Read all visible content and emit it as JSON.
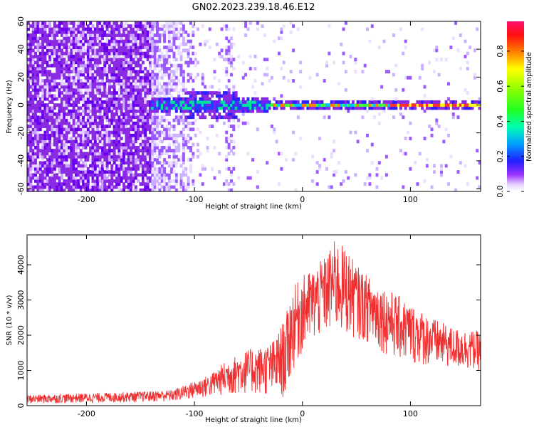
{
  "figure": {
    "title": "GN02.2023.239.18.46.E12"
  },
  "chart_data": [
    {
      "type": "heatmap",
      "xlabel": "Height of straight line (km)",
      "ylabel": "Frequency (Hz)",
      "xlim": [
        -255,
        165
      ],
      "ylim": [
        -62,
        60
      ],
      "xticks": [
        -200,
        -100,
        0,
        100
      ],
      "xtick_labels": [
        "-200",
        "-100",
        "0",
        "100"
      ],
      "yticks": [
        -60,
        -40,
        -20,
        0,
        20,
        40,
        60
      ],
      "ytick_labels": [
        "-60",
        "-40",
        "-20",
        "0",
        "20",
        "40",
        "60"
      ],
      "colorbar": {
        "label": "Normalized spectral amplitude",
        "range": [
          0,
          0.97
        ],
        "ticks": [
          0.0,
          0.2,
          0.4,
          0.6,
          0.8
        ],
        "tick_labels": [
          "0.0",
          "0.2",
          "0.4",
          "0.6",
          "0.8"
        ],
        "colormap": "gist_rainbow_r"
      },
      "grid": false
    },
    {
      "type": "line",
      "xlabel": "Height of straight line (km)",
      "ylabel": "SNR (10 * v/v)",
      "xlim": [
        -255,
        165
      ],
      "ylim": [
        0,
        4850
      ],
      "xticks": [
        -200,
        -100,
        0,
        100
      ],
      "xtick_labels": [
        "-200",
        "-100",
        "0",
        "100"
      ],
      "yticks": [
        0,
        1000,
        2000,
        3000,
        4000
      ],
      "ytick_labels": [
        "0",
        "1000",
        "2000",
        "3000",
        "4000"
      ],
      "color": "#f03030",
      "grid": false,
      "envelope": {
        "x": [
          -255,
          -200,
          -150,
          -120,
          -100,
          -85,
          -70,
          -50,
          -35,
          -25,
          -15,
          -10,
          0,
          10,
          20,
          30,
          40,
          50,
          60,
          70,
          80,
          90,
          100,
          120,
          140,
          165
        ],
        "low": [
          60,
          80,
          100,
          120,
          200,
          250,
          300,
          350,
          300,
          250,
          200,
          900,
          1500,
          1800,
          2000,
          2100,
          2000,
          1900,
          1800,
          1600,
          1400,
          1300,
          1200,
          1100,
          1050,
          1000
        ],
        "high": [
          300,
          350,
          400,
          450,
          700,
          900,
          1300,
          1600,
          1700,
          1900,
          2600,
          3300,
          3700,
          3900,
          4200,
          4700,
          4500,
          4000,
          3700,
          3500,
          3300,
          3100,
          2900,
          2500,
          2200,
          2100
        ]
      }
    }
  ]
}
